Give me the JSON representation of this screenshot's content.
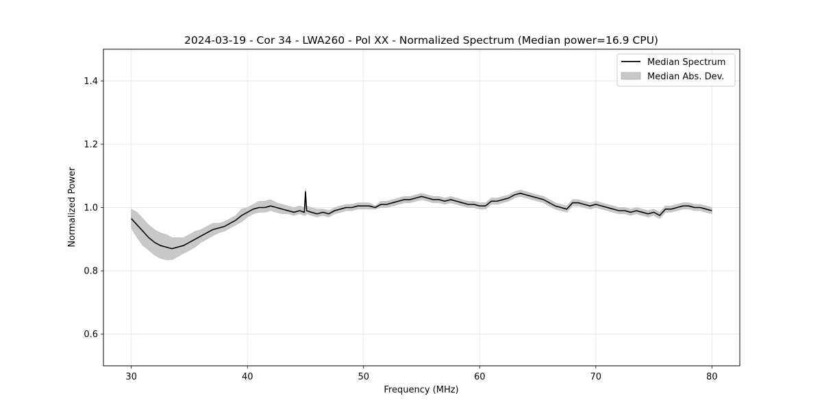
{
  "chart_data": {
    "type": "line",
    "title": "2024-03-19 - Cor 34 - LWA260 - Pol XX - Normalized Spectrum (Median power=16.9 CPU)",
    "xlabel": "Frequency (MHz)",
    "ylabel": "Normalized Power",
    "xlim": [
      27.6,
      82.4
    ],
    "ylim": [
      0.5,
      1.5
    ],
    "xticks": [
      30,
      40,
      50,
      60,
      70,
      80
    ],
    "xtick_labels": [
      "30",
      "40",
      "50",
      "60",
      "70",
      "80"
    ],
    "yticks": [
      0.6,
      0.8,
      1.0,
      1.2,
      1.4
    ],
    "ytick_labels": [
      "0.6",
      "0.8",
      "1.0",
      "1.2",
      "1.4"
    ],
    "grid": true,
    "legend": {
      "position": "top-right",
      "entries": [
        {
          "label": "Median Spectrum",
          "kind": "line",
          "color": "#000000"
        },
        {
          "label": "Median Abs. Dev.",
          "kind": "band",
          "color": "#c8c8c8"
        }
      ]
    },
    "series": [
      {
        "name": "Median Spectrum",
        "x": [
          30,
          30.5,
          31,
          31.5,
          32,
          32.5,
          33,
          33.5,
          34,
          34.5,
          35,
          35.5,
          36,
          36.5,
          37,
          37.5,
          38,
          38.5,
          39,
          39.5,
          40,
          40.5,
          41,
          41.5,
          42,
          42.5,
          43,
          43.5,
          44,
          44.5,
          44.9,
          45.0,
          45.1,
          45.5,
          46,
          46.5,
          47,
          47.5,
          48,
          48.5,
          49,
          49.5,
          50,
          50.5,
          51,
          51.5,
          52,
          52.5,
          53,
          53.5,
          54,
          54.5,
          55,
          55.5,
          56,
          56.5,
          57,
          57.5,
          58,
          58.5,
          59,
          59.5,
          60,
          60.5,
          61,
          61.5,
          62,
          62.5,
          63,
          63.5,
          64,
          64.5,
          65,
          65.5,
          66,
          66.5,
          67,
          67.5,
          68,
          68.5,
          69,
          69.5,
          70,
          70.5,
          71,
          71.5,
          72,
          72.5,
          73,
          73.5,
          74,
          74.5,
          75,
          75.5,
          76,
          76.5,
          77,
          77.5,
          78,
          78.5,
          79,
          79.5,
          80
        ],
        "values": [
          0.965,
          0.945,
          0.925,
          0.905,
          0.89,
          0.88,
          0.875,
          0.87,
          0.875,
          0.88,
          0.89,
          0.9,
          0.91,
          0.92,
          0.93,
          0.935,
          0.94,
          0.95,
          0.96,
          0.975,
          0.985,
          0.995,
          1.0,
          1.0,
          1.005,
          1.0,
          0.995,
          0.99,
          0.985,
          0.99,
          0.985,
          1.05,
          0.99,
          0.985,
          0.98,
          0.985,
          0.98,
          0.99,
          0.995,
          1.0,
          1.0,
          1.005,
          1.005,
          1.005,
          1.0,
          1.01,
          1.01,
          1.015,
          1.02,
          1.025,
          1.025,
          1.03,
          1.035,
          1.03,
          1.025,
          1.025,
          1.02,
          1.025,
          1.02,
          1.015,
          1.01,
          1.01,
          1.005,
          1.005,
          1.02,
          1.02,
          1.025,
          1.03,
          1.04,
          1.045,
          1.04,
          1.035,
          1.03,
          1.025,
          1.015,
          1.005,
          1.0,
          0.995,
          1.015,
          1.015,
          1.01,
          1.005,
          1.01,
          1.005,
          1.0,
          0.995,
          0.99,
          0.99,
          0.985,
          0.99,
          0.985,
          0.98,
          0.985,
          0.975,
          0.995,
          0.995,
          1.0,
          1.005,
          1.005,
          1.0,
          1.0,
          0.995,
          0.99
        ]
      },
      {
        "name": "Median Abs. Dev.",
        "x": [
          30,
          30.5,
          31,
          31.5,
          32,
          32.5,
          33,
          33.5,
          34,
          34.5,
          35,
          35.5,
          36,
          36.5,
          37,
          37.5,
          38,
          38.5,
          39,
          39.5,
          40,
          40.5,
          41,
          41.5,
          42,
          42.5,
          43,
          43.5,
          44,
          44.5,
          44.9,
          45.0,
          45.1,
          45.5,
          46,
          46.5,
          47,
          47.5,
          48,
          48.5,
          49,
          49.5,
          50,
          50.5,
          51,
          51.5,
          52,
          52.5,
          53,
          53.5,
          54,
          54.5,
          55,
          55.5,
          56,
          56.5,
          57,
          57.5,
          58,
          58.5,
          59,
          59.5,
          60,
          60.5,
          61,
          61.5,
          62,
          62.5,
          63,
          63.5,
          64,
          64.5,
          65,
          65.5,
          66,
          66.5,
          67,
          67.5,
          68,
          68.5,
          69,
          69.5,
          70,
          70.5,
          71,
          71.5,
          72,
          72.5,
          73,
          73.5,
          74,
          74.5,
          75,
          75.5,
          76,
          76.5,
          77,
          77.5,
          78,
          78.5,
          79,
          79.5,
          80
        ],
        "lower": [
          0.935,
          0.905,
          0.88,
          0.865,
          0.85,
          0.84,
          0.835,
          0.835,
          0.845,
          0.855,
          0.865,
          0.875,
          0.89,
          0.9,
          0.91,
          0.92,
          0.925,
          0.935,
          0.945,
          0.955,
          0.97,
          0.98,
          0.985,
          0.985,
          0.99,
          0.985,
          0.98,
          0.98,
          0.975,
          0.98,
          0.975,
          0.975,
          0.98,
          0.975,
          0.97,
          0.975,
          0.97,
          0.98,
          0.985,
          0.99,
          0.99,
          0.995,
          0.995,
          0.995,
          0.995,
          1.0,
          1.0,
          1.005,
          1.01,
          1.015,
          1.015,
          1.02,
          1.025,
          1.02,
          1.015,
          1.015,
          1.01,
          1.015,
          1.01,
          1.005,
          1.0,
          1.0,
          0.995,
          0.995,
          1.01,
          1.01,
          1.015,
          1.02,
          1.03,
          1.035,
          1.03,
          1.025,
          1.02,
          1.015,
          1.005,
          0.995,
          0.99,
          0.985,
          1.005,
          1.005,
          1.0,
          0.995,
          1.0,
          0.995,
          0.99,
          0.985,
          0.98,
          0.98,
          0.975,
          0.98,
          0.975,
          0.97,
          0.975,
          0.965,
          0.985,
          0.985,
          0.99,
          0.995,
          0.995,
          0.99,
          0.99,
          0.985,
          0.98
        ],
        "upper": [
          0.995,
          0.985,
          0.965,
          0.945,
          0.93,
          0.92,
          0.915,
          0.905,
          0.905,
          0.905,
          0.915,
          0.925,
          0.93,
          0.94,
          0.95,
          0.95,
          0.955,
          0.965,
          0.975,
          0.995,
          1.0,
          1.01,
          1.02,
          1.02,
          1.025,
          1.015,
          1.01,
          1.005,
          1.0,
          1.005,
          1.0,
          1.06,
          1.005,
          1.0,
          0.995,
          0.995,
          0.99,
          1.0,
          1.005,
          1.01,
          1.01,
          1.015,
          1.015,
          1.015,
          1.005,
          1.02,
          1.02,
          1.025,
          1.03,
          1.035,
          1.035,
          1.04,
          1.045,
          1.04,
          1.035,
          1.035,
          1.03,
          1.035,
          1.03,
          1.025,
          1.02,
          1.02,
          1.015,
          1.015,
          1.03,
          1.03,
          1.035,
          1.04,
          1.05,
          1.055,
          1.05,
          1.045,
          1.04,
          1.035,
          1.025,
          1.015,
          1.01,
          1.005,
          1.025,
          1.025,
          1.02,
          1.015,
          1.02,
          1.015,
          1.01,
          1.005,
          1.0,
          1.0,
          0.995,
          1.0,
          0.995,
          0.99,
          0.995,
          0.985,
          1.005,
          1.005,
          1.01,
          1.015,
          1.015,
          1.01,
          1.01,
          1.005,
          1.0
        ]
      }
    ]
  }
}
